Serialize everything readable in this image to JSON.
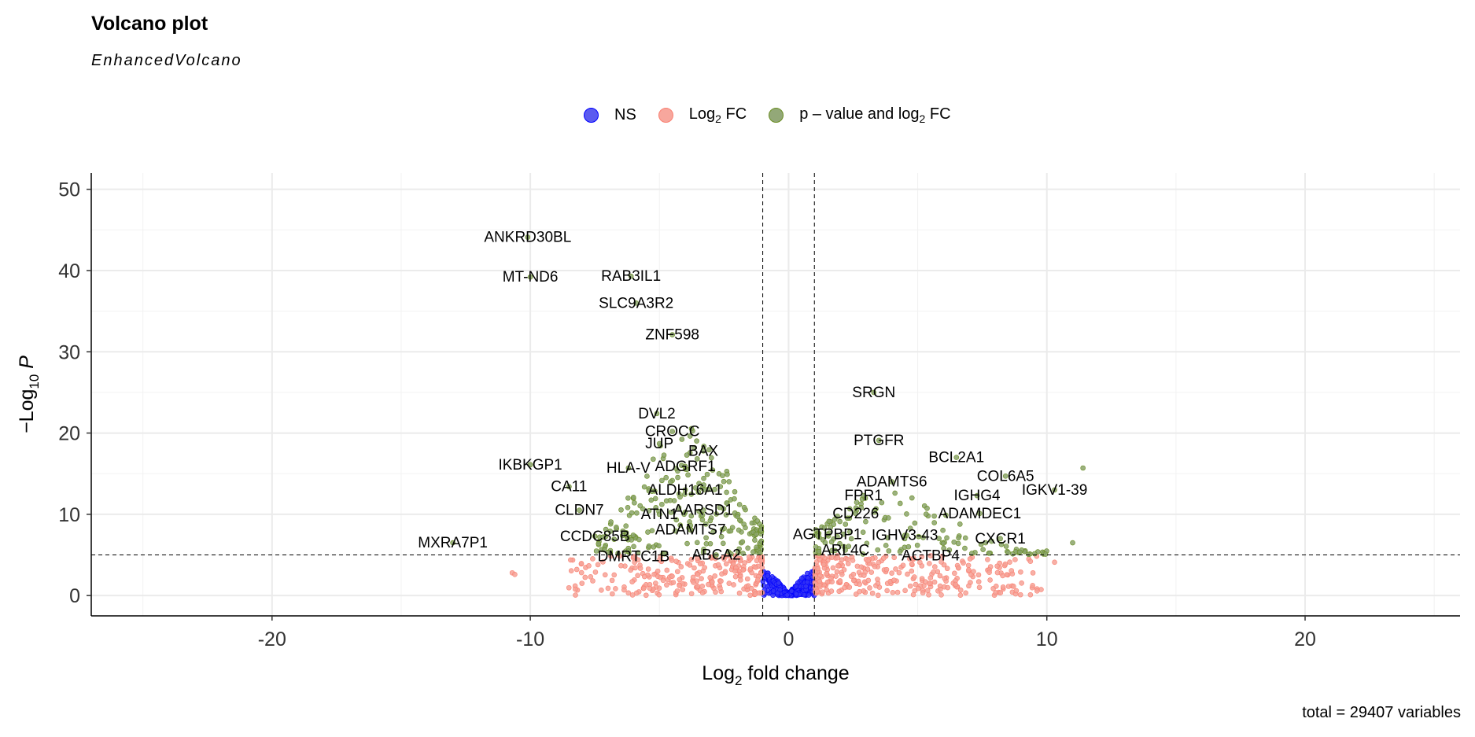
{
  "title": "Volcano plot",
  "subtitle": "EnhancedVolcano",
  "caption": "total = 29407 variables",
  "legend": [
    {
      "label": "NS",
      "color": "#0000ff"
    },
    {
      "label_main": "Log",
      "label_sub": "2",
      "label_tail": " FC",
      "color": "#fa8072"
    },
    {
      "label_main": "p – value and log",
      "label_sub": "2",
      "label_tail": " FC",
      "color": "#6b8e23"
    }
  ],
  "chart_data": {
    "type": "scatter",
    "xlabel_main": "Log",
    "xlabel_sub": "2",
    "xlabel_tail": " fold change",
    "ylabel_pre": "−Log",
    "ylabel_sub": "10",
    "ylabel_tail": " P",
    "xlim": [
      -27,
      26
    ],
    "ylim": [
      -2.5,
      52
    ],
    "xticks": [
      -20,
      -10,
      0,
      10,
      20
    ],
    "yticks": [
      0,
      10,
      20,
      30,
      40,
      50
    ],
    "grid": true,
    "fc_cutoff": 1,
    "p_cutoff": 5,
    "legend_position": "top",
    "labels": [
      {
        "gene": "ANKRD30BL",
        "x": -10.1,
        "y": 44.1
      },
      {
        "gene": "MT-ND6",
        "x": -10.0,
        "y": 39.2
      },
      {
        "gene": "RAB3IL1",
        "x": -6.1,
        "y": 39.3
      },
      {
        "gene": "SLC9A3R2",
        "x": -5.9,
        "y": 36.0
      },
      {
        "gene": "ZNF598",
        "x": -4.5,
        "y": 32.1
      },
      {
        "gene": "SRGN",
        "x": 3.3,
        "y": 25.0
      },
      {
        "gene": "DVL2",
        "x": -5.1,
        "y": 22.4
      },
      {
        "gene": "CROCC",
        "x": -4.5,
        "y": 20.2
      },
      {
        "gene": "JUP",
        "x": -5.0,
        "y": 18.7
      },
      {
        "gene": "BAX",
        "x": -3.3,
        "y": 17.8
      },
      {
        "gene": "PTGFR",
        "x": 3.5,
        "y": 19.1
      },
      {
        "gene": "BCL2A1",
        "x": 6.5,
        "y": 17.0
      },
      {
        "gene": "IKBKGP1",
        "x": -10.0,
        "y": 16.1
      },
      {
        "gene": "HLA-V",
        "x": -6.2,
        "y": 15.7
      },
      {
        "gene": "ADGRF1",
        "x": -4.0,
        "y": 15.9
      },
      {
        "gene": "COL6A5",
        "x": 8.4,
        "y": 14.7
      },
      {
        "gene": "ADAMTS6",
        "x": 4.0,
        "y": 14.0
      },
      {
        "gene": "CA11",
        "x": -8.5,
        "y": 13.4
      },
      {
        "gene": "ALDH16A1",
        "x": -4.0,
        "y": 13.0
      },
      {
        "gene": "FPR1",
        "x": 2.9,
        "y": 12.3
      },
      {
        "gene": "IGHG4",
        "x": 7.3,
        "y": 12.3
      },
      {
        "gene": "IGKV1-39",
        "x": 10.3,
        "y": 13.0
      },
      {
        "gene": "CLDN7",
        "x": -8.1,
        "y": 10.5
      },
      {
        "gene": "ATN1",
        "x": -5.0,
        "y": 10.0
      },
      {
        "gene": "AARSD1",
        "x": -3.3,
        "y": 10.5
      },
      {
        "gene": "CD226",
        "x": 2.6,
        "y": 10.1
      },
      {
        "gene": "ADAMDEC1",
        "x": 7.4,
        "y": 10.1
      },
      {
        "gene": "ADAMTS7",
        "x": -3.8,
        "y": 8.1
      },
      {
        "gene": "AGTPBP1",
        "x": 1.5,
        "y": 7.5
      },
      {
        "gene": "IGHV3-43",
        "x": 4.5,
        "y": 7.4
      },
      {
        "gene": "CXCR1",
        "x": 8.2,
        "y": 7.0
      },
      {
        "gene": "CCDC85B",
        "x": -7.5,
        "y": 7.3
      },
      {
        "gene": "MXRA7P1",
        "x": -13.0,
        "y": 6.5
      },
      {
        "gene": "ARL4C",
        "x": 2.2,
        "y": 5.6
      },
      {
        "gene": "ACTBP4",
        "x": 5.5,
        "y": 4.9
      },
      {
        "gene": "DMRTC1B",
        "x": -6.0,
        "y": 4.8
      },
      {
        "gene": "ABCA2",
        "x": -2.8,
        "y": 5.0
      }
    ]
  }
}
